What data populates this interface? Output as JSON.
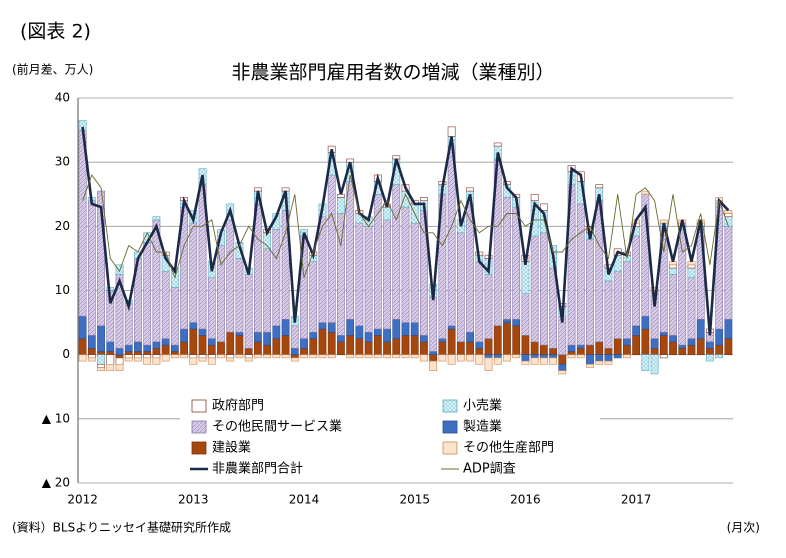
{
  "figure_label": "(図表 2)",
  "chart_data": {
    "type": "bar",
    "title": "非農業部門雇用者数の増減（業種別）",
    "y_unit": "(前月差、万人)",
    "x_unit": "(月次)",
    "source": "(資料）BLSよりニッセイ基礎研究所作成",
    "categories": [
      "2012",
      null,
      null,
      null,
      null,
      null,
      null,
      null,
      null,
      null,
      null,
      null,
      "2013",
      null,
      null,
      null,
      null,
      null,
      null,
      null,
      null,
      null,
      null,
      null,
      "2014",
      null,
      null,
      null,
      null,
      null,
      null,
      null,
      null,
      null,
      null,
      null,
      "2015",
      null,
      null,
      null,
      null,
      null,
      null,
      null,
      null,
      null,
      null,
      null,
      "2016",
      null,
      null,
      null,
      null,
      null,
      null,
      null,
      null,
      null,
      null,
      null,
      "2017",
      null,
      null,
      null,
      null,
      null,
      null,
      null,
      null,
      null,
      null
    ],
    "ylim": [
      -20,
      40
    ],
    "yticks": [
      {
        "value": -20,
        "label": "▲ 20"
      },
      {
        "value": -10,
        "label": "▲ 10"
      },
      0,
      10,
      20,
      30,
      40
    ],
    "grid": true,
    "series": [
      {
        "name": "政府部門",
        "type": "bar",
        "color": "#ffffff",
        "stroke": "#8b3a2a",
        "values": [
          0,
          -0.5,
          -0.5,
          -1.5,
          -1,
          -0.5,
          -0.5,
          -0.5,
          -0.5,
          0.5,
          0,
          0.5,
          -0.5,
          -0.5,
          -0.5,
          0,
          -0.5,
          0,
          -0.5,
          0.5,
          0.5,
          0,
          0.5,
          0,
          0,
          0.5,
          0,
          1,
          0.5,
          0.5,
          0.5,
          0,
          1,
          0.5,
          0.5,
          1,
          0.5,
          0.5,
          0,
          0.5,
          1.5,
          0,
          0.5,
          0.5,
          0.5,
          0.5,
          0.5,
          0.5,
          1,
          1,
          1,
          0,
          0.5,
          1,
          1.5,
          1,
          0.5,
          0.5,
          1,
          0.5,
          0.5,
          0,
          0,
          -0.5,
          0.5,
          0.5,
          0.5,
          0.5,
          0.5,
          0,
          0.5
        ]
      },
      {
        "name": "小売業",
        "type": "bar",
        "color": "#9fd8e6",
        "stroke": "#5aaec4",
        "values": [
          1.5,
          0.5,
          -1.5,
          0.5,
          1.5,
          0.5,
          1,
          1.5,
          0.5,
          2.5,
          3,
          1,
          2,
          2.5,
          2.5,
          2.5,
          2.5,
          2.5,
          1,
          2,
          2.5,
          2.5,
          3,
          1.5,
          1,
          1,
          2,
          3.5,
          2.5,
          3,
          1.5,
          1.5,
          2,
          2,
          4,
          2.5,
          3,
          1.5,
          2,
          1.5,
          1.5,
          2,
          2,
          1,
          2.5,
          2,
          2,
          1.5,
          5,
          5.5,
          3.5,
          3.5,
          1.5,
          2,
          3.5,
          1,
          2,
          2,
          2.5,
          1,
          1.5,
          -2.5,
          -3,
          0.5,
          1,
          0.5,
          1.5,
          0.5,
          -1,
          -0.5,
          1.5
        ]
      },
      {
        "name": "その他民間サービス業",
        "type": "bar",
        "color": "#d8cce8",
        "stroke": "#8a78a8",
        "values": [
          29,
          21,
          21,
          8,
          11.5,
          6.5,
          13,
          16,
          19,
          10.5,
          9,
          19,
          15.5,
          22.5,
          9.5,
          15,
          17.5,
          11.5,
          11.5,
          20,
          13,
          15,
          17,
          3.5,
          16,
          11,
          16.5,
          23,
          19,
          21.5,
          16,
          16.5,
          21,
          17,
          21,
          18,
          15.5,
          19.5,
          8.5,
          22.5,
          28,
          17,
          20,
          12.5,
          10,
          26,
          19,
          17.5,
          6.5,
          16.5,
          17.5,
          12.5,
          6,
          25,
          22,
          16.5,
          22,
          10.5,
          10.5,
          12,
          14,
          19,
          7.5,
          16.5,
          9.5,
          18,
          9.5,
          14,
          1.5,
          20,
          14.5
        ]
      },
      {
        "name": "製造業",
        "type": "bar",
        "color": "#3f6fc2",
        "stroke": "#2a4f94",
        "values": [
          3.5,
          2,
          4,
          1.5,
          1,
          1,
          1.5,
          1,
          1,
          1,
          1,
          2,
          1,
          1,
          1,
          0,
          0,
          0.5,
          0,
          1.5,
          2,
          2,
          2.5,
          1,
          1.5,
          1,
          1,
          1.5,
          1,
          2.5,
          2,
          1.5,
          1,
          2,
          3,
          2,
          2,
          1,
          0.5,
          0.5,
          0.5,
          0,
          1.5,
          1,
          -0.5,
          -0.5,
          0.5,
          1,
          -1,
          -0.5,
          -0.5,
          -0.5,
          -1,
          1,
          0.5,
          -1.5,
          -1,
          -1,
          -0.5,
          1,
          1.5,
          2,
          1.5,
          0.5,
          1,
          0.5,
          1,
          3,
          1,
          2.5,
          3
        ]
      },
      {
        "name": "建設業",
        "type": "bar",
        "color": "#a5470f",
        "stroke": "#7a330a",
        "values": [
          2.5,
          1,
          0.5,
          0.5,
          -0.5,
          0.5,
          0.5,
          0.5,
          1,
          1.5,
          0.5,
          2,
          4,
          3,
          1.5,
          2,
          3.5,
          3,
          1,
          2,
          1.5,
          2.5,
          3,
          -0.5,
          1,
          2.5,
          4,
          3.5,
          2,
          3,
          2.5,
          2,
          3,
          2,
          2.5,
          3,
          3,
          2,
          -1,
          2,
          4,
          2,
          2,
          1,
          2.5,
          4.5,
          5,
          4.5,
          3,
          2,
          1.5,
          1,
          -1.5,
          0.5,
          1,
          1.5,
          2,
          1,
          2.5,
          1.5,
          3,
          4,
          1,
          3,
          2,
          1,
          1.5,
          2.5,
          1,
          1.5,
          2.5
        ]
      },
      {
        "name": "その他生産部門",
        "type": "bar",
        "color": "#fde3cc",
        "stroke": "#c98a5a",
        "values": [
          -1,
          -0.5,
          -0.5,
          -1,
          -1,
          -0.5,
          -0.5,
          -1,
          -1,
          -1,
          -0.5,
          -0.5,
          -1,
          -0.5,
          -1,
          -0.5,
          -0.5,
          -0.5,
          -0.5,
          -0.5,
          -0.5,
          -0.5,
          -0.5,
          -0.5,
          -0.5,
          -0.5,
          -0.5,
          -0.5,
          0,
          -0.5,
          -0.5,
          -0.5,
          -0.5,
          -0.5,
          -0.5,
          -0.5,
          -0.5,
          -1,
          -1.5,
          -1,
          -1.5,
          -1,
          -1,
          -1.5,
          -2,
          -1,
          -1,
          -0.5,
          -0.5,
          -1,
          -1,
          -1,
          -0.5,
          -0.5,
          -0.5,
          -0.5,
          -0.5,
          -0.5,
          0,
          -0.5,
          0.5,
          0.5,
          0.5,
          0.5,
          0.5,
          0.5,
          0.5,
          0.5,
          0,
          0.5,
          0.5
        ]
      },
      {
        "name": "非農業部門合計",
        "type": "line",
        "color": "#1c2a48",
        "values": [
          35.5,
          23.5,
          23,
          8,
          11.5,
          7.5,
          15,
          17.5,
          20,
          15,
          13,
          24,
          21,
          28,
          13,
          19,
          22.5,
          17,
          12.5,
          25.5,
          19,
          21.5,
          25.5,
          5,
          19,
          15.5,
          23,
          32,
          25,
          30,
          22,
          21,
          27.5,
          23,
          30.5,
          26,
          23.5,
          23.5,
          8.5,
          26,
          34,
          20,
          25,
          14.5,
          13,
          31.5,
          26,
          24.5,
          14,
          23.5,
          22,
          15.5,
          5,
          29,
          28,
          18,
          25,
          12.5,
          16,
          15.5,
          21,
          23,
          7.5,
          20.5,
          14.5,
          21,
          14.5,
          21,
          3,
          24,
          22.5
        ]
      },
      {
        "name": "ADP調査",
        "type": "line",
        "color": "#6b6a30",
        "values": [
          24,
          28,
          26,
          15,
          13,
          17,
          16,
          19,
          16,
          16,
          12,
          17,
          20,
          20,
          21,
          14,
          16,
          17,
          20,
          18,
          17,
          15,
          19,
          25,
          12,
          16,
          20,
          22,
          17,
          28,
          22,
          20,
          22,
          24,
          21,
          25,
          22,
          19,
          19,
          17,
          20,
          24,
          21,
          19,
          20,
          20,
          22,
          22,
          20,
          21,
          21,
          16,
          16,
          18,
          19,
          20,
          17,
          15,
          25,
          15,
          25,
          26,
          24,
          16,
          25,
          16,
          17,
          22,
          14,
          24,
          20
        ]
      }
    ]
  }
}
